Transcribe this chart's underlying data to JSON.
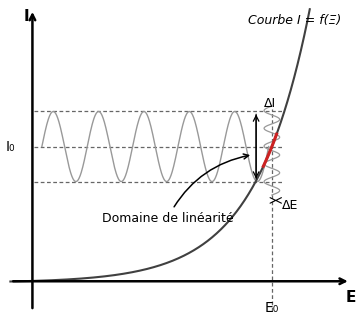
{
  "title": "",
  "xlabel": "E",
  "ylabel": "I",
  "curve_label": "Courbe I = f(Ξ)",
  "label_I0": "I₀",
  "label_DeltaI": "ΔI",
  "label_DeltaE": "ΔE",
  "label_E0": "E₀",
  "label_domain": "Domaine de linéarité",
  "bg_color": "#ffffff",
  "curve_color": "#404040",
  "sine_color": "#999999",
  "dashed_color": "#666666",
  "red_color": "#cc2222",
  "arrow_color": "#111111",
  "E0": 0.76,
  "I0": 0.5,
  "DeltaI": 0.13,
  "DeltaE": 0.045,
  "xlim": [
    -0.08,
    1.02
  ],
  "ylim": [
    -0.12,
    1.02
  ],
  "k": 5.8,
  "E_shift": 0.25
}
